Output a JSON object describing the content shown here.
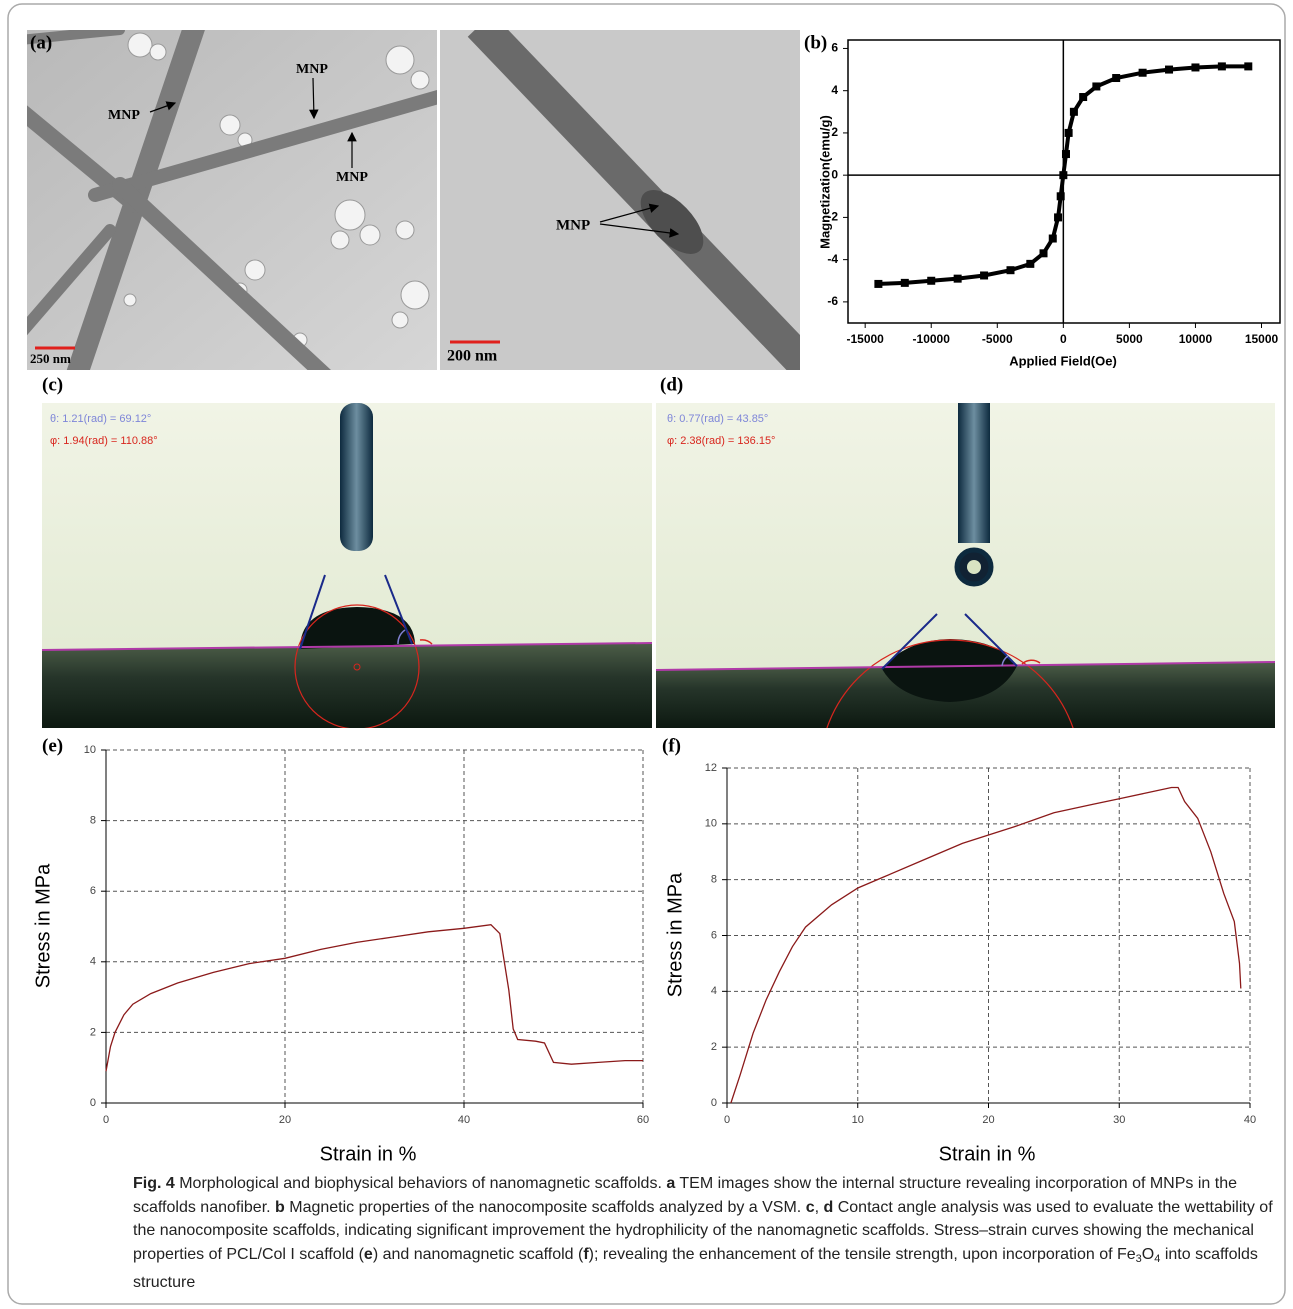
{
  "figure": {
    "panel_labels": [
      "(a)",
      "(b)",
      "(c)",
      "(d)",
      "(e)",
      "(f)"
    ],
    "tem": {
      "annotations": [
        "MNP",
        "MNP",
        "MNP",
        "MNP"
      ],
      "scale_bars": [
        "250 nm",
        "200 nm"
      ]
    },
    "contact_angle": [
      {
        "theta": "θ: 1.21(rad) = 69.12°",
        "phi": "φ: 1.94(rad) = 110.88°"
      },
      {
        "theta": "θ: 0.77(rad) = 43.85°",
        "phi": "φ: 2.38(rad) = 136.15°"
      }
    ]
  },
  "chart_data": [
    {
      "type": "line",
      "marker": "square",
      "color": "#000000",
      "origin_lines": true,
      "frame": true,
      "grid": false,
      "xlabel": "Applied Field(Oe)",
      "ylabel": "Magnetization(emu/g)",
      "x": [
        -14000,
        -12000,
        -10000,
        -8000,
        -6000,
        -4000,
        -2500,
        -1500,
        -800,
        -400,
        -200,
        0,
        200,
        400,
        800,
        1500,
        2500,
        4000,
        6000,
        8000,
        10000,
        12000,
        14000
      ],
      "values": [
        -5.15,
        -5.1,
        -5.0,
        -4.9,
        -4.75,
        -4.5,
        -4.2,
        -3.7,
        -3.0,
        -2.0,
        -1.0,
        0,
        1.0,
        2.0,
        3.0,
        3.7,
        4.2,
        4.6,
        4.85,
        5.0,
        5.1,
        5.15,
        5.15
      ],
      "xlim": [
        -16300,
        16400
      ],
      "ylim": [
        -7,
        6.4
      ],
      "xticks": [
        -15000,
        -10000,
        -5000,
        0,
        5000,
        10000,
        15000
      ],
      "yticks": [
        -6,
        -4,
        -2,
        0,
        2,
        4,
        6
      ]
    },
    {
      "type": "line",
      "color": "#8b1a1a",
      "grid": true,
      "frame": false,
      "origin_lines": false,
      "xlabel": "Strain in %",
      "ylabel": "Stress in MPa",
      "x": [
        0,
        0.5,
        1,
        2,
        3,
        5,
        8,
        12,
        16,
        20,
        24,
        28,
        32,
        36,
        40,
        43,
        44,
        45,
        45.5,
        46,
        48,
        49,
        50,
        52,
        55,
        58,
        60
      ],
      "values": [
        0.9,
        1.6,
        2.0,
        2.5,
        2.8,
        3.1,
        3.4,
        3.7,
        3.95,
        4.1,
        4.35,
        4.55,
        4.7,
        4.85,
        4.95,
        5.05,
        4.8,
        3.2,
        2.1,
        1.8,
        1.75,
        1.7,
        1.15,
        1.1,
        1.15,
        1.2,
        1.2
      ],
      "xlim": [
        0,
        60
      ],
      "ylim": [
        0,
        10
      ],
      "xticks": [
        0,
        20,
        40,
        60
      ],
      "yticks": [
        0,
        2,
        4,
        6,
        8,
        10
      ]
    },
    {
      "type": "line",
      "color": "#8b1a1a",
      "grid": true,
      "frame": false,
      "origin_lines": false,
      "xlabel": "Strain in %",
      "ylabel": "Stress in MPa",
      "x": [
        0.3,
        1,
        2,
        3,
        4,
        5,
        6,
        8,
        10,
        12,
        15,
        18,
        20,
        22,
        25,
        28,
        30,
        32,
        34,
        34.5,
        35,
        36,
        37,
        38,
        38.8,
        39.2,
        39.3
      ],
      "values": [
        0,
        1,
        2.5,
        3.7,
        4.7,
        5.6,
        6.3,
        7.1,
        7.7,
        8.1,
        8.7,
        9.3,
        9.6,
        9.9,
        10.4,
        10.7,
        10.9,
        11.1,
        11.3,
        11.3,
        10.8,
        10.2,
        9.0,
        7.5,
        6.5,
        5,
        4.1
      ],
      "xlim": [
        0,
        40
      ],
      "ylim": [
        0,
        12
      ],
      "xticks": [
        0,
        10,
        20,
        30,
        40
      ],
      "yticks": [
        0,
        2,
        4,
        6,
        8,
        10,
        12
      ]
    }
  ],
  "caption": {
    "parts": [
      {
        "text": "Fig. 4",
        "style": "b"
      },
      {
        "text": "  Morphological and biophysical behaviors of nanomagnetic scaffolds. ",
        "style": "n"
      },
      {
        "text": "a",
        "style": "b"
      },
      {
        "text": " TEM images show the internal structure revealing incorporation of MNPs in the scaffolds nanofiber. ",
        "style": "n"
      },
      {
        "text": "b",
        "style": "b"
      },
      {
        "text": " Magnetic properties of the nanocomposite scaffolds analyzed by a VSM. ",
        "style": "n"
      },
      {
        "text": "c",
        "style": "b"
      },
      {
        "text": ", ",
        "style": "n"
      },
      {
        "text": "d",
        "style": "b"
      },
      {
        "text": " Contact angle analysis was used to evaluate the wettability of the nanocomposite scaffolds, indicating significant improvement the hydrophilicity of the nanomagnetic scaffolds. Stress–strain curves showing the mechanical properties of PCL/Col I scaffold (",
        "style": "n"
      },
      {
        "text": "e",
        "style": "b"
      },
      {
        "text": ") and nanomagnetic scaffold (",
        "style": "n"
      },
      {
        "text": "f",
        "style": "b"
      },
      {
        "text": "); revealing the enhancement of the tensile strength, upon incorporation of Fe",
        "style": "n"
      },
      {
        "text": "3",
        "style": "sub"
      },
      {
        "text": "O",
        "style": "n"
      },
      {
        "text": "4",
        "style": "sub"
      },
      {
        "text": " into scaffolds structure",
        "style": "n"
      }
    ]
  }
}
